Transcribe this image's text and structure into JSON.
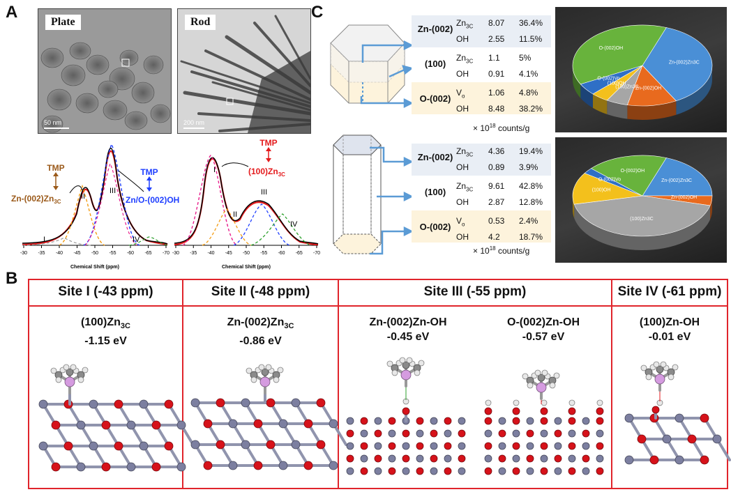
{
  "panels": {
    "a": "A",
    "b": "B",
    "c": "C"
  },
  "tem": {
    "plate": {
      "label": "Plate",
      "scale": "50 nm"
    },
    "rod": {
      "label": "Rod",
      "scale": "200 nm"
    }
  },
  "nmr": {
    "xlabel": "Chemical Shift (ppm)",
    "ticks": [
      "-30",
      "-35",
      "-40",
      "-45",
      "-50",
      "-55",
      "-60",
      "-65",
      "-70"
    ],
    "plate": {
      "tmp1": "TMP",
      "label1": "Zn-(002)Zn",
      "sub1": "3C",
      "tmp2": "TMP",
      "label2": "Zn/O-(002)OH",
      "peaks": [
        "I",
        "II",
        "III",
        "IV"
      ]
    },
    "rod": {
      "tmp": "TMP",
      "label": "(100)Zn",
      "sub": "3C",
      "peaks": [
        "I",
        "II",
        "III",
        "IV"
      ]
    }
  },
  "table_top": {
    "unit_prefix": "× 10",
    "unit_exp": "18",
    "unit_suffix": " counts/g",
    "groups": [
      {
        "facet": "Zn-(002)",
        "rows": [
          {
            "site": "Zn",
            "sub": "3C",
            "count": "8.07",
            "pct": "36.4%"
          },
          {
            "site": "OH",
            "sub": "",
            "count": "2.55",
            "pct": "11.5%"
          }
        ]
      },
      {
        "facet": "(100)",
        "rows": [
          {
            "site": "Zn",
            "sub": "3C",
            "count": "1.1",
            "pct": "5%"
          },
          {
            "site": "OH",
            "sub": "",
            "count": "0.91",
            "pct": "4.1%"
          }
        ]
      },
      {
        "facet": "O-(002)",
        "rows": [
          {
            "site": "V",
            "sub": "o",
            "count": "1.06",
            "pct": "4.8%"
          },
          {
            "site": "OH",
            "sub": "",
            "count": "8.48",
            "pct": "38.2%"
          }
        ]
      }
    ]
  },
  "table_bottom": {
    "unit_prefix": "× 10",
    "unit_exp": "18",
    "unit_suffix": " counts/g",
    "groups": [
      {
        "facet": "Zn-(002)",
        "rows": [
          {
            "site": "Zn",
            "sub": "3C",
            "count": "4.36",
            "pct": "19.4%"
          },
          {
            "site": "OH",
            "sub": "",
            "count": "0.89",
            "pct": "3.9%"
          }
        ]
      },
      {
        "facet": "(100)",
        "rows": [
          {
            "site": "Zn",
            "sub": "3C",
            "count": "9.61",
            "pct": "42.8%"
          },
          {
            "site": "OH",
            "sub": "",
            "count": "2.87",
            "pct": "12.8%"
          }
        ]
      },
      {
        "facet": "O-(002)",
        "rows": [
          {
            "site": "V",
            "sub": "o",
            "count": "0.53",
            "pct": "2.4%"
          },
          {
            "site": "OH",
            "sub": "",
            "count": "4.2",
            "pct": "18.7%"
          }
        ]
      }
    ]
  },
  "chart_data": [
    {
      "type": "pie",
      "title": "",
      "slices": [
        {
          "label": "Zn-(002)Zn3C",
          "value": 36.4,
          "color": "#4a8fd6"
        },
        {
          "label": "Zn-(002)OH",
          "value": 11.5,
          "color": "#e86a1e"
        },
        {
          "label": "(100)Zn3C",
          "value": 5,
          "color": "#a6a6a6"
        },
        {
          "label": "(100)OH",
          "value": 4.1,
          "color": "#f3c01c"
        },
        {
          "label": "O-(002)Vo",
          "value": 4.8,
          "color": "#2f6fc6"
        },
        {
          "label": "O-(002)OH",
          "value": 38.2,
          "color": "#68b33c"
        }
      ]
    },
    {
      "type": "pie",
      "title": "",
      "slices": [
        {
          "label": "Zn-(002)Zn3C",
          "value": 19.4,
          "color": "#4a8fd6"
        },
        {
          "label": "Zn-(002)OH",
          "value": 3.9,
          "color": "#e86a1e"
        },
        {
          "label": "(100)Zn3C",
          "value": 42.8,
          "color": "#a6a6a6"
        },
        {
          "label": "(100)OH",
          "value": 12.8,
          "color": "#f3c01c"
        },
        {
          "label": "O-(002)Vo",
          "value": 2.4,
          "color": "#2f6fc6"
        },
        {
          "label": "O-(002)OH",
          "value": 18.7,
          "color": "#68b33c"
        }
      ]
    }
  ],
  "sites": [
    {
      "title": "Site I (-43 ppm)",
      "models": [
        {
          "name": "(100)Zn",
          "sub": "3C",
          "energy": "-1.15 eV"
        }
      ]
    },
    {
      "title": "Site II (-48 ppm)",
      "models": [
        {
          "name": "Zn-(002)Zn",
          "sub": "3C",
          "energy": "-0.86 eV"
        }
      ]
    },
    {
      "title": "Site III (-55 ppm)",
      "models": [
        {
          "name": "Zn-(002)Zn-OH",
          "sub": "",
          "energy": "-0.45 eV"
        },
        {
          "name": "O-(002)Zn-OH",
          "sub": "",
          "energy": "-0.57 eV"
        }
      ]
    },
    {
      "title": "Site IV (-61 ppm)",
      "models": [
        {
          "name": "(100)Zn-OH",
          "sub": "",
          "energy": "-0.01 eV"
        }
      ]
    }
  ],
  "colors": {
    "red_frame": "#e0242b",
    "zn_atom": "#7c7fa0",
    "o_atom": "#d6121a",
    "p_atom": "#d59be0",
    "h_atom": "#e8e8e8",
    "c_atom": "#8a8a8a",
    "arrow": "#5b9bd5",
    "tbl_blue": "#e9eef5",
    "tbl_yellow": "#fdf3dc"
  }
}
